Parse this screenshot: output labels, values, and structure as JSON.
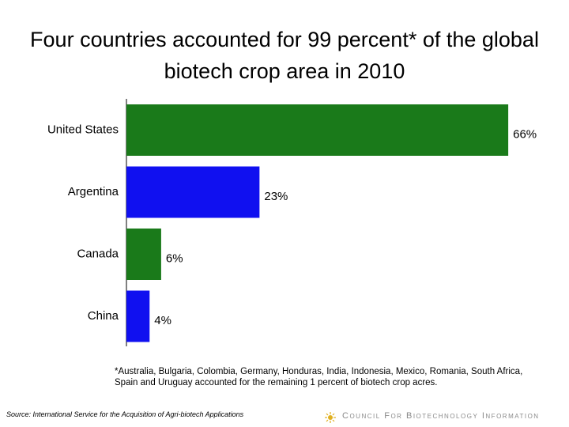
{
  "chart_data": {
    "type": "bar",
    "orientation": "horizontal",
    "title": "Four countries accounted for 99 percent* of the global biotech crop area in 2010",
    "categories": [
      "United States",
      "Argentina",
      "Canada",
      "China"
    ],
    "values": [
      66,
      23,
      6,
      4
    ],
    "value_labels": [
      "66%",
      "23%",
      "6%",
      "4%"
    ],
    "colors": [
      "#1a7a1a",
      "#1010f0",
      "#1a7a1a",
      "#1010f0"
    ],
    "footnote": "*Australia, Bulgaria, Colombia, Germany, Honduras, India, Indonesia, Mexico, Romania, South Africa, Spain and Uruguay accounted for the remaining 1 percent of biotech crop acres.",
    "source": "Source: International Service for the Acquisition of Agri-biotech Applications",
    "logo": "Council For Biotechnology Information"
  }
}
